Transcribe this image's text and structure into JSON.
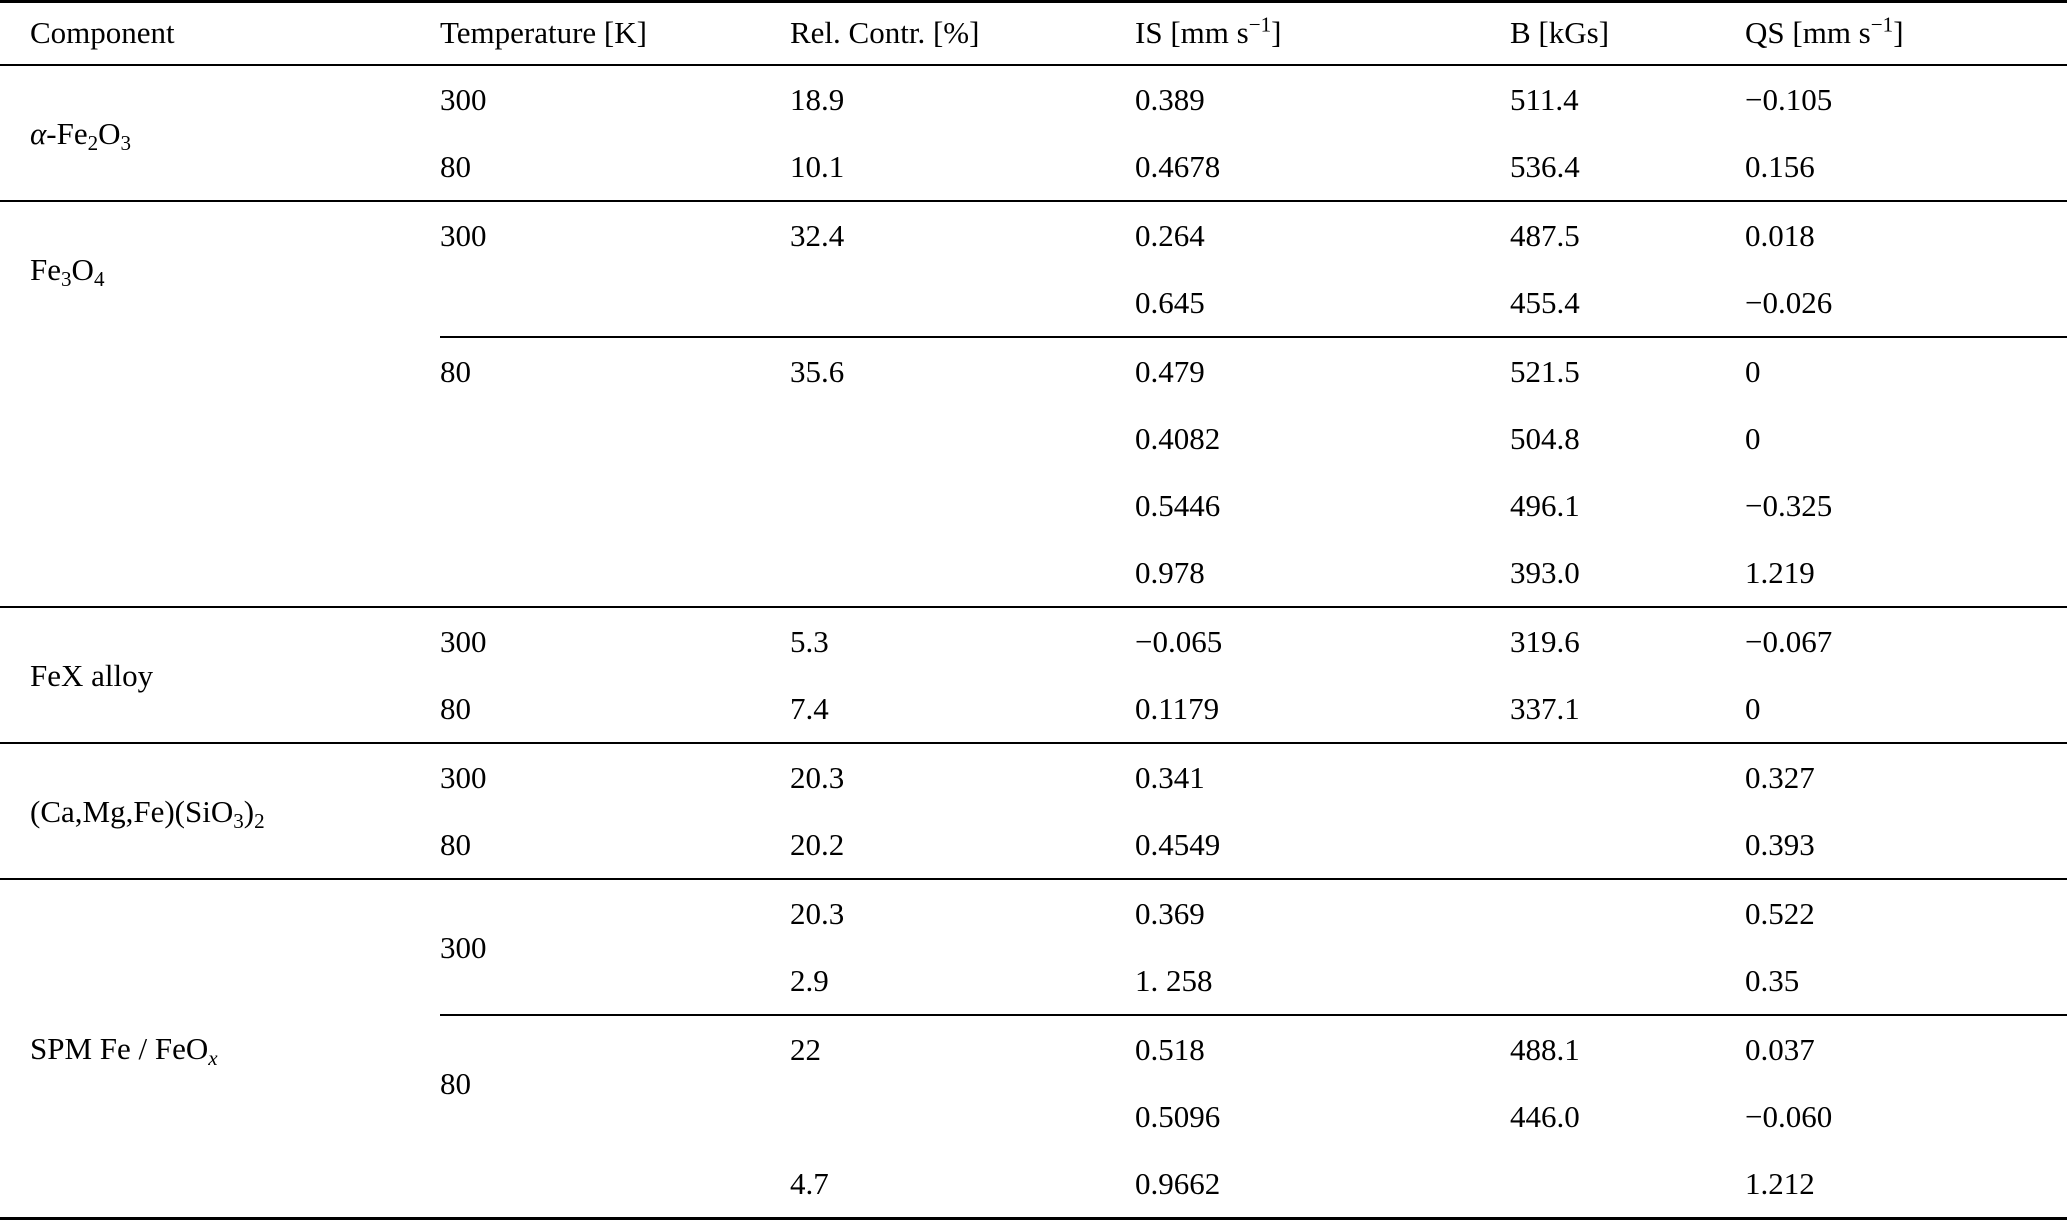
{
  "columns": [
    [
      {
        "t": "Component"
      }
    ],
    [
      {
        "t": "Temperature [K]"
      }
    ],
    [
      {
        "t": "Rel. Contr. [%]"
      }
    ],
    [
      {
        "t": "IS [mm s"
      },
      {
        "t": "−1",
        "sup": true
      },
      {
        "t": "]"
      }
    ],
    [
      {
        "t": "B [kGs]"
      }
    ],
    [
      {
        "t": "QS [mm s"
      },
      {
        "t": "−1",
        "sup": true
      },
      {
        "t": "]"
      }
    ]
  ],
  "sections": [
    {
      "component": [
        {
          "t": "α",
          "italic": true
        },
        {
          "t": "-Fe"
        },
        {
          "t": "2",
          "sub": true
        },
        {
          "t": "O"
        },
        {
          "t": "3",
          "sub": true
        }
      ],
      "groups": [
        {
          "rows": [
            [
              "300",
              "18.9",
              "0.389",
              "511.4",
              "−0.105"
            ],
            [
              "80",
              "10.1",
              "0.4678",
              "536.4",
              "0.156"
            ]
          ]
        }
      ]
    },
    {
      "component": [
        {
          "t": "Fe"
        },
        {
          "t": "3",
          "sub": true
        },
        {
          "t": "O"
        },
        {
          "t": "4",
          "sub": true
        }
      ],
      "groups": [
        {
          "rows": [
            [
              "300",
              "32.4",
              "0.264",
              "487.5",
              "0.018"
            ],
            [
              "",
              "",
              "0.645",
              "455.4",
              "−0.026"
            ]
          ]
        },
        {
          "rows": [
            [
              "80",
              "35.6",
              "0.479",
              "521.5",
              "0"
            ],
            [
              "",
              "",
              "0.4082",
              "504.8",
              "0"
            ],
            [
              "",
              "",
              "0.5446",
              "496.1",
              "−0.325"
            ],
            [
              "",
              "",
              "0.978",
              "393.0",
              "1.219"
            ]
          ]
        }
      ]
    },
    {
      "component": [
        {
          "t": "FeX alloy"
        }
      ],
      "groups": [
        {
          "rows": [
            [
              "300",
              "5.3",
              "−0.065",
              "319.6",
              "−0.067"
            ],
            [
              "80",
              "7.4",
              "0.1179",
              "337.1",
              "0"
            ]
          ]
        }
      ]
    },
    {
      "component": [
        {
          "t": "(Ca,Mg,Fe)(SiO"
        },
        {
          "t": "3",
          "sub": true
        },
        {
          "t": ")"
        },
        {
          "t": "2",
          "sub": true
        }
      ],
      "groups": [
        {
          "rows": [
            [
              "300",
              "20.3",
              "0.341",
              "",
              "0.327"
            ],
            [
              "80",
              "20.2",
              "0.4549",
              "",
              "0.393"
            ]
          ]
        }
      ]
    },
    {
      "component": [
        {
          "t": "SPM Fe / FeO"
        },
        {
          "t": "x",
          "sub": true,
          "italic": true
        }
      ],
      "groups": [
        {
          "rows": [
            [
              "300",
              "20.3",
              "0.369",
              "",
              "0.522"
            ],
            [
              "",
              "2.9",
              "1. 258",
              "",
              "0.35"
            ]
          ]
        },
        {
          "rows": [
            [
              "80",
              "22",
              "0.518",
              "488.1",
              "0.037"
            ],
            [
              "",
              "",
              "0.5096",
              "446.0",
              "−0.060"
            ],
            [
              "",
              "4.7",
              "0.9662",
              "",
              "1.212"
            ]
          ]
        }
      ]
    }
  ]
}
